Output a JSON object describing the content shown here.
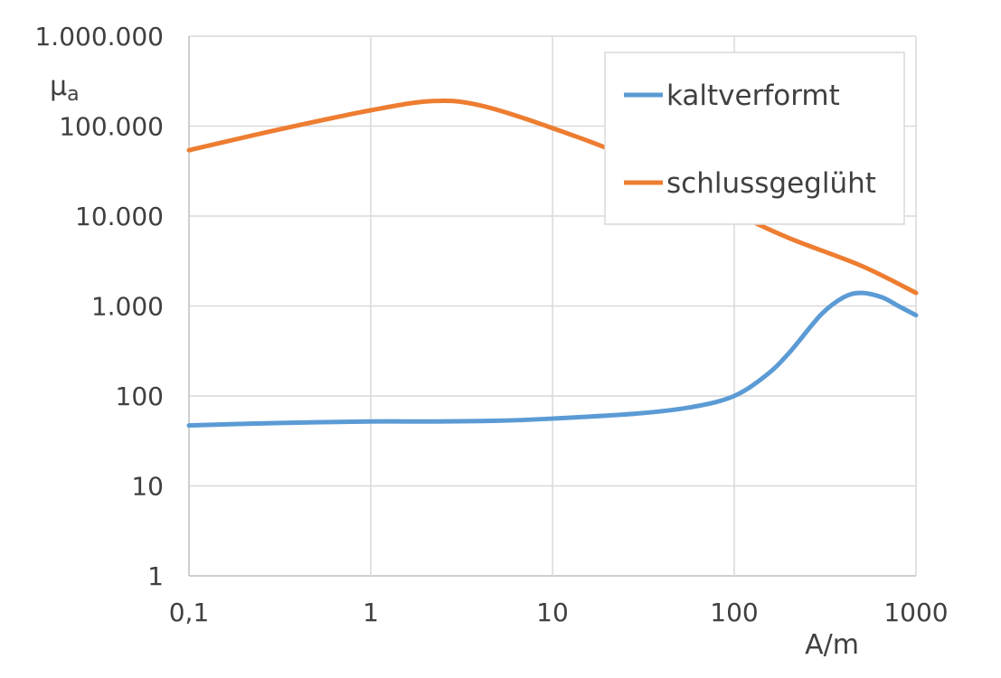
{
  "chart_data": {
    "type": "line",
    "title": "",
    "xlabel": "A/m",
    "ylabel_main": "μ",
    "ylabel_sub": "a",
    "x_scale": "log",
    "y_scale": "log",
    "xlim": [
      0.1,
      1000
    ],
    "ylim": [
      1,
      1000000
    ],
    "grid": true,
    "legend_position": "top-right",
    "x_ticks": [
      {
        "value": 0.1,
        "label": "0,1"
      },
      {
        "value": 1,
        "label": "1"
      },
      {
        "value": 10,
        "label": "10"
      },
      {
        "value": 100,
        "label": "100"
      },
      {
        "value": 1000,
        "label": "1000"
      }
    ],
    "y_ticks": [
      {
        "value": 1,
        "label": "1"
      },
      {
        "value": 10,
        "label": "10"
      },
      {
        "value": 100,
        "label": "100"
      },
      {
        "value": 1000,
        "label": "1.000"
      },
      {
        "value": 10000,
        "label": "10.000"
      },
      {
        "value": 100000,
        "label": "100.000"
      },
      {
        "value": 1000000,
        "label": "1.000.000"
      }
    ],
    "series": [
      {
        "name": "kaltverformt",
        "color": "#5b9bd5",
        "points": [
          [
            0.1,
            47
          ],
          [
            0.3,
            50
          ],
          [
            1,
            52
          ],
          [
            2.2,
            52
          ],
          [
            5,
            53
          ],
          [
            10,
            56
          ],
          [
            30,
            64
          ],
          [
            60,
            76
          ],
          [
            100,
            100
          ],
          [
            150,
            170
          ],
          [
            200,
            300
          ],
          [
            300,
            800
          ],
          [
            400,
            1250
          ],
          [
            500,
            1400
          ],
          [
            650,
            1250
          ],
          [
            800,
            1000
          ],
          [
            1000,
            790
          ]
        ]
      },
      {
        "name": "schlussgeglüht",
        "color": "#ed7d31",
        "points": [
          [
            0.1,
            54000
          ],
          [
            0.3,
            90000
          ],
          [
            1,
            150000
          ],
          [
            2.2,
            190000
          ],
          [
            4,
            170000
          ],
          [
            10,
            95000
          ],
          [
            30,
            40000
          ],
          [
            100,
            11000
          ],
          [
            200,
            5700
          ],
          [
            500,
            2800
          ],
          [
            1000,
            1400
          ]
        ]
      }
    ]
  }
}
